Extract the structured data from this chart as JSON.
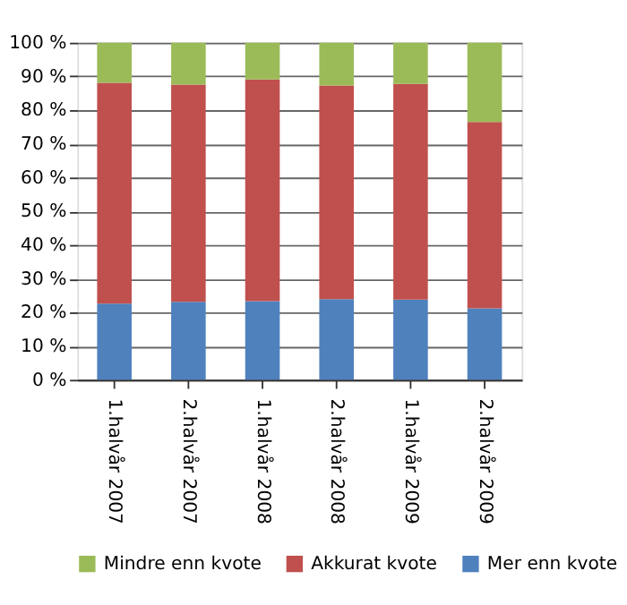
{
  "chart_data": {
    "type": "bar",
    "stacked": true,
    "categories": [
      "1.halvår 2007",
      "2.halvår 2007",
      "1.halvår 2008",
      "2.halvår 2008",
      "1.halvår 2009",
      "2.halvår 2009"
    ],
    "series": [
      {
        "name": "Mer enn kvote",
        "color": "#4f81bd",
        "values": [
          22.6,
          23.1,
          23.3,
          23.9,
          23.8,
          21.2
        ]
      },
      {
        "name": "Akkurat kvote",
        "color": "#c0504d",
        "values": [
          65.5,
          64.5,
          65.8,
          63.4,
          64.0,
          55.3
        ]
      },
      {
        "name": "Mindre enn kvote",
        "color": "#9bbb59",
        "values": [
          11.9,
          12.4,
          10.9,
          12.7,
          12.2,
          23.5
        ]
      }
    ],
    "ylim": [
      0,
      100
    ],
    "yticks": [
      {
        "value": 0,
        "label": "0 %"
      },
      {
        "value": 10,
        "label": "10 %"
      },
      {
        "value": 20,
        "label": "20 %"
      },
      {
        "value": 30,
        "label": "30 %"
      },
      {
        "value": 40,
        "label": "40 %"
      },
      {
        "value": 50,
        "label": "50 %"
      },
      {
        "value": 60,
        "label": "60 %"
      },
      {
        "value": 70,
        "label": "70 %"
      },
      {
        "value": 80,
        "label": "80 %"
      },
      {
        "value": 90,
        "label": "90 %"
      },
      {
        "value": 100,
        "label": "100 %"
      }
    ],
    "grid": "y",
    "legend": "bottom"
  }
}
